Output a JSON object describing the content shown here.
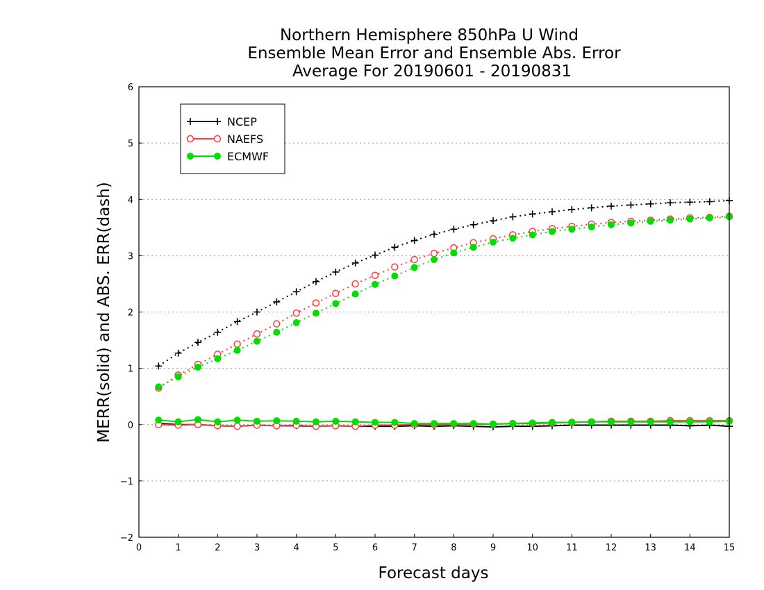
{
  "chart_data": {
    "type": "line",
    "title": [
      "Northern Hemisphere 850hPa U Wind",
      "Ensemble Mean Error and Ensemble Abs. Error",
      "Average For 20190601 - 20190831"
    ],
    "xlabel": "Forecast days",
    "ylabel": "MERR(solid) and ABS. ERR(dash)",
    "xlim": [
      0,
      15
    ],
    "ylim": [
      -2,
      6
    ],
    "xticks": [
      0,
      1,
      2,
      3,
      4,
      5,
      6,
      7,
      8,
      9,
      10,
      11,
      12,
      13,
      14,
      15
    ],
    "yticks": [
      -2,
      -1,
      0,
      1,
      2,
      3,
      4,
      5,
      6
    ],
    "grid": "horizontal dotted",
    "legend_position": "top-left",
    "x": [
      0.5,
      1,
      1.5,
      2,
      2.5,
      3,
      3.5,
      4,
      4.5,
      5,
      5.5,
      6,
      6.5,
      7,
      7.5,
      8,
      8.5,
      9,
      9.5,
      10,
      10.5,
      11,
      11.5,
      12,
      12.5,
      13,
      13.5,
      14,
      14.5,
      15
    ],
    "series": [
      {
        "name": "NCEP",
        "color": "#000000",
        "marker": "plus",
        "merr": [
          0.02,
          0.0,
          0.0,
          -0.02,
          -0.03,
          -0.01,
          -0.02,
          -0.02,
          -0.03,
          -0.02,
          -0.03,
          -0.03,
          -0.03,
          -0.02,
          -0.03,
          -0.02,
          -0.03,
          -0.04,
          -0.03,
          -0.03,
          -0.02,
          -0.01,
          -0.01,
          -0.01,
          -0.01,
          -0.01,
          -0.01,
          -0.02,
          -0.01,
          -0.03
        ],
        "abs_err": [
          1.04,
          1.27,
          1.46,
          1.64,
          1.83,
          2.0,
          2.18,
          2.36,
          2.54,
          2.71,
          2.87,
          3.01,
          3.15,
          3.27,
          3.38,
          3.47,
          3.55,
          3.62,
          3.69,
          3.74,
          3.78,
          3.82,
          3.85,
          3.88,
          3.9,
          3.92,
          3.94,
          3.95,
          3.96,
          3.98
        ]
      },
      {
        "name": "NAEFS",
        "color": "#ff3b3b",
        "marker": "open-circle",
        "merr": [
          0.0,
          -0.01,
          0.0,
          -0.02,
          -0.03,
          -0.01,
          -0.02,
          -0.01,
          -0.03,
          -0.02,
          -0.03,
          -0.01,
          -0.01,
          0.0,
          0.0,
          0.01,
          0.01,
          0.01,
          0.02,
          0.02,
          0.03,
          0.04,
          0.05,
          0.06,
          0.06,
          0.06,
          0.07,
          0.07,
          0.07,
          0.07
        ],
        "abs_err": [
          0.65,
          0.88,
          1.07,
          1.25,
          1.43,
          1.61,
          1.79,
          1.98,
          2.16,
          2.33,
          2.5,
          2.65,
          2.8,
          2.93,
          3.04,
          3.14,
          3.23,
          3.3,
          3.37,
          3.43,
          3.48,
          3.52,
          3.56,
          3.59,
          3.61,
          3.63,
          3.65,
          3.67,
          3.68,
          3.7
        ]
      },
      {
        "name": "ECMWF",
        "color": "#00dd00",
        "marker": "filled-circle",
        "merr": [
          0.08,
          0.05,
          0.09,
          0.05,
          0.08,
          0.06,
          0.07,
          0.06,
          0.05,
          0.06,
          0.05,
          0.04,
          0.04,
          0.02,
          0.02,
          0.02,
          0.02,
          0.01,
          0.02,
          0.03,
          0.04,
          0.04,
          0.05,
          0.05,
          0.05,
          0.05,
          0.05,
          0.05,
          0.05,
          0.06
        ],
        "abs_err": [
          0.67,
          0.85,
          1.02,
          1.17,
          1.32,
          1.48,
          1.64,
          1.81,
          1.98,
          2.15,
          2.32,
          2.49,
          2.64,
          2.79,
          2.93,
          3.05,
          3.15,
          3.24,
          3.31,
          3.37,
          3.43,
          3.47,
          3.51,
          3.55,
          3.58,
          3.61,
          3.63,
          3.65,
          3.67,
          3.69
        ]
      }
    ]
  }
}
